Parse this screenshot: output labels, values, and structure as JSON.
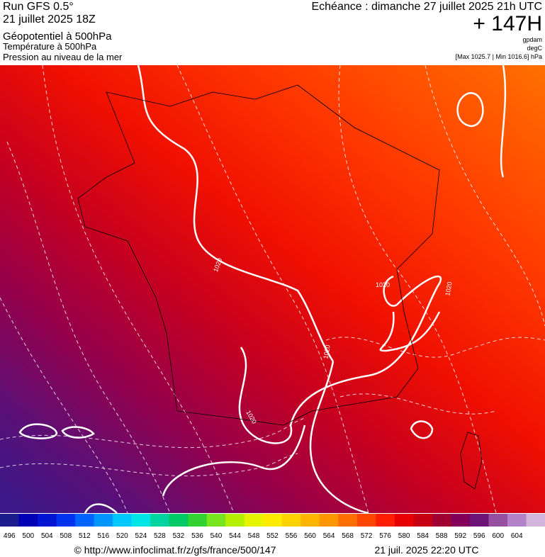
{
  "header": {
    "run": "Run GFS 0.5°",
    "date": "21 juillet 2025 18Z",
    "field1": "Géopotentiel à 500hPa",
    "field2": "Température à 500hPa",
    "field3": "Pression au niveau de la mer",
    "forecast": "Echéance : dimanche 27 juillet 2025 21h UTC",
    "lead": "+ 147H",
    "unit1": "gpdam",
    "unit2": "degC",
    "pressure_range": "[Max 1025.7 | Min 1016.6] hPa"
  },
  "map": {
    "isobar_labels": [
      "1020",
      "1020",
      "1020",
      "1020",
      "1020"
    ]
  },
  "legend": {
    "values": [
      496,
      500,
      504,
      508,
      512,
      516,
      520,
      524,
      528,
      532,
      536,
      540,
      544,
      548,
      552,
      556,
      560,
      564,
      568,
      572,
      576,
      580,
      584,
      588,
      592,
      596,
      600,
      604
    ],
    "colors": [
      "#1c1c8c",
      "#0000b4",
      "#0014d2",
      "#0032f0",
      "#0064ff",
      "#0096ff",
      "#00c8ff",
      "#00e6e6",
      "#00d2a0",
      "#00c864",
      "#32d232",
      "#78e61e",
      "#b4f000",
      "#e6f500",
      "#ffeb00",
      "#ffd200",
      "#ffb400",
      "#ff9600",
      "#ff6e00",
      "#ff4600",
      "#ff1e00",
      "#e60000",
      "#c80014",
      "#a00032",
      "#82005a",
      "#6e1478",
      "#9650a0",
      "#b482c8",
      "#d2b4dc"
    ]
  },
  "footer": {
    "url": "© http://www.infoclimat.fr/z/gfs/france/500/147",
    "timestamp": "21 juil. 2025 22:20 UTC"
  }
}
